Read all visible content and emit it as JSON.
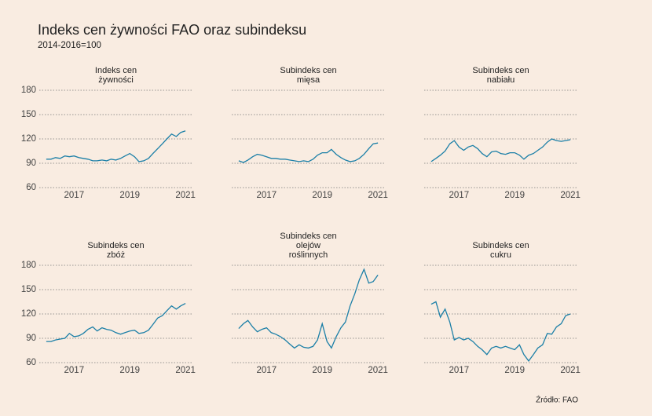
{
  "title": "Indeks cen żywności FAO oraz subindeksu",
  "subtitle": "2014-2016=100",
  "source": "Źródło: FAO",
  "chart_data": [
    {
      "type": "line",
      "title": [
        "Indeks cen",
        "żywności"
      ],
      "color": "#1b7fa7",
      "grid": true,
      "x": [
        2016,
        2016.17,
        2016.33,
        2016.5,
        2016.67,
        2016.83,
        2017,
        2017.17,
        2017.33,
        2017.5,
        2017.67,
        2017.83,
        2018,
        2018.17,
        2018.33,
        2018.5,
        2018.67,
        2018.83,
        2019,
        2019.17,
        2019.33,
        2019.5,
        2019.67,
        2019.83,
        2020,
        2020.17,
        2020.33,
        2020.5,
        2020.67,
        2020.83,
        2021
      ],
      "values": [
        95,
        95,
        97,
        96,
        99,
        98,
        99,
        97,
        96,
        95,
        93,
        93,
        94,
        93,
        95,
        94,
        96,
        99,
        102,
        98,
        92,
        93,
        96,
        102,
        108,
        114,
        120,
        126,
        123,
        128,
        130
      ],
      "xlim": [
        2015.75,
        2021.25
      ],
      "xticks": [
        2017,
        2019,
        2021
      ],
      "ylim": [
        60,
        180
      ],
      "yticks": [
        60,
        90,
        120,
        150,
        180
      ]
    },
    {
      "type": "line",
      "title": [
        "Subindeks cen",
        "mięsa"
      ],
      "color": "#1b7fa7",
      "grid": true,
      "x": [
        2016,
        2016.17,
        2016.33,
        2016.5,
        2016.67,
        2016.83,
        2017,
        2017.17,
        2017.33,
        2017.5,
        2017.67,
        2017.83,
        2018,
        2018.17,
        2018.33,
        2018.5,
        2018.67,
        2018.83,
        2019,
        2019.17,
        2019.33,
        2019.5,
        2019.67,
        2019.83,
        2020,
        2020.17,
        2020.33,
        2020.5,
        2020.67,
        2020.83,
        2021
      ],
      "values": [
        93,
        91,
        94,
        98,
        101,
        100,
        98,
        96,
        96,
        95,
        95,
        94,
        93,
        92,
        93,
        92,
        95,
        100,
        103,
        103,
        107,
        101,
        97,
        94,
        92,
        93,
        96,
        101,
        108,
        114,
        115
      ],
      "xlim": [
        2015.75,
        2021.25
      ],
      "xticks": [
        2017,
        2019,
        2021
      ],
      "ylim": [
        60,
        180
      ],
      "yticks": [
        60,
        90,
        120,
        150,
        180
      ]
    },
    {
      "type": "line",
      "title": [
        "Subindeks cen",
        "nabiału"
      ],
      "color": "#1b7fa7",
      "grid": true,
      "x": [
        2016,
        2016.17,
        2016.33,
        2016.5,
        2016.67,
        2016.83,
        2017,
        2017.17,
        2017.33,
        2017.5,
        2017.67,
        2017.83,
        2018,
        2018.17,
        2018.33,
        2018.5,
        2018.67,
        2018.83,
        2019,
        2019.17,
        2019.33,
        2019.5,
        2019.67,
        2019.83,
        2020,
        2020.17,
        2020.33,
        2020.5,
        2020.67,
        2020.83,
        2021
      ],
      "values": [
        92,
        96,
        100,
        105,
        114,
        118,
        110,
        106,
        110,
        112,
        108,
        102,
        98,
        104,
        105,
        102,
        101,
        103,
        103,
        100,
        95,
        100,
        102,
        106,
        110,
        116,
        120,
        118,
        117,
        118,
        119
      ],
      "xlim": [
        2015.75,
        2021.25
      ],
      "xticks": [
        2017,
        2019,
        2021
      ],
      "ylim": [
        60,
        180
      ],
      "yticks": [
        60,
        90,
        120,
        150,
        180
      ]
    },
    {
      "type": "line",
      "title": [
        "Subindeks cen",
        "zbóż"
      ],
      "color": "#1b7fa7",
      "grid": true,
      "x": [
        2016,
        2016.17,
        2016.33,
        2016.5,
        2016.67,
        2016.83,
        2017,
        2017.17,
        2017.33,
        2017.5,
        2017.67,
        2017.83,
        2018,
        2018.17,
        2018.33,
        2018.5,
        2018.67,
        2018.83,
        2019,
        2019.17,
        2019.33,
        2019.5,
        2019.67,
        2019.83,
        2020,
        2020.17,
        2020.33,
        2020.5,
        2020.67,
        2020.83,
        2021
      ],
      "values": [
        86,
        86,
        88,
        89,
        90,
        96,
        92,
        93,
        96,
        101,
        104,
        99,
        103,
        101,
        100,
        97,
        95,
        97,
        99,
        100,
        96,
        97,
        100,
        107,
        115,
        118,
        124,
        130,
        126,
        130,
        133
      ],
      "xlim": [
        2015.75,
        2021.25
      ],
      "xticks": [
        2017,
        2019,
        2021
      ],
      "ylim": [
        60,
        180
      ],
      "yticks": [
        60,
        90,
        120,
        150,
        180
      ]
    },
    {
      "type": "line",
      "title": [
        "Subindeks cen",
        "olejów",
        "roślinnych"
      ],
      "color": "#1b7fa7",
      "grid": true,
      "x": [
        2016,
        2016.17,
        2016.33,
        2016.5,
        2016.67,
        2016.83,
        2017,
        2017.17,
        2017.33,
        2017.5,
        2017.67,
        2017.83,
        2018,
        2018.17,
        2018.33,
        2018.5,
        2018.67,
        2018.83,
        2019,
        2019.17,
        2019.33,
        2019.5,
        2019.67,
        2019.83,
        2020,
        2020.17,
        2020.33,
        2020.5,
        2020.67,
        2020.83,
        2021
      ],
      "values": [
        102,
        108,
        112,
        104,
        98,
        101,
        103,
        97,
        95,
        92,
        88,
        83,
        78,
        82,
        79,
        78,
        80,
        88,
        108,
        86,
        78,
        92,
        103,
        110,
        130,
        145,
        162,
        175,
        158,
        160,
        168
      ],
      "xlim": [
        2015.75,
        2021.25
      ],
      "xticks": [
        2017,
        2019,
        2021
      ],
      "ylim": [
        60,
        180
      ],
      "yticks": [
        60,
        90,
        120,
        150,
        180
      ]
    },
    {
      "type": "line",
      "title": [
        "Subindeks cen",
        "cukru"
      ],
      "color": "#1b7fa7",
      "grid": true,
      "x": [
        2016,
        2016.17,
        2016.33,
        2016.5,
        2016.67,
        2016.83,
        2017,
        2017.17,
        2017.33,
        2017.5,
        2017.67,
        2017.83,
        2018,
        2018.17,
        2018.33,
        2018.5,
        2018.67,
        2018.83,
        2019,
        2019.17,
        2019.33,
        2019.5,
        2019.67,
        2019.83,
        2020,
        2020.17,
        2020.33,
        2020.5,
        2020.67,
        2020.83,
        2021
      ],
      "values": [
        132,
        135,
        116,
        126,
        110,
        88,
        91,
        88,
        90,
        86,
        80,
        76,
        70,
        78,
        80,
        78,
        80,
        78,
        76,
        82,
        70,
        62,
        70,
        78,
        82,
        96,
        95,
        104,
        108,
        118,
        120
      ],
      "xlim": [
        2015.75,
        2021.25
      ],
      "xticks": [
        2017,
        2019,
        2021
      ],
      "ylim": [
        60,
        180
      ],
      "yticks": [
        60,
        90,
        120,
        150,
        180
      ]
    }
  ]
}
